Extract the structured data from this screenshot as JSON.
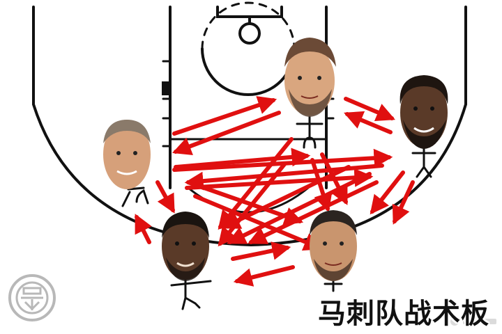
{
  "caption": "马刺队战术板",
  "colors": {
    "court_line": "#111111",
    "arrow": "#e01010",
    "skin": "#d9a67f",
    "skin_dark": "#5a3a28",
    "hair": "#2b2420",
    "watermark": "#b8b8b8"
  },
  "players": [
    {
      "id": "player-top-center",
      "skin": "skin",
      "beard": true
    },
    {
      "id": "player-top-right",
      "skin": "skin_dark",
      "beard": true
    },
    {
      "id": "player-left",
      "skin": "skin",
      "beard": false
    },
    {
      "id": "player-bottom-left",
      "skin": "skin_dark",
      "beard": true
    },
    {
      "id": "player-bottom-right",
      "skin": "skin",
      "beard": true
    }
  ],
  "icons": {
    "watermark": "stamp-seal-icon"
  }
}
